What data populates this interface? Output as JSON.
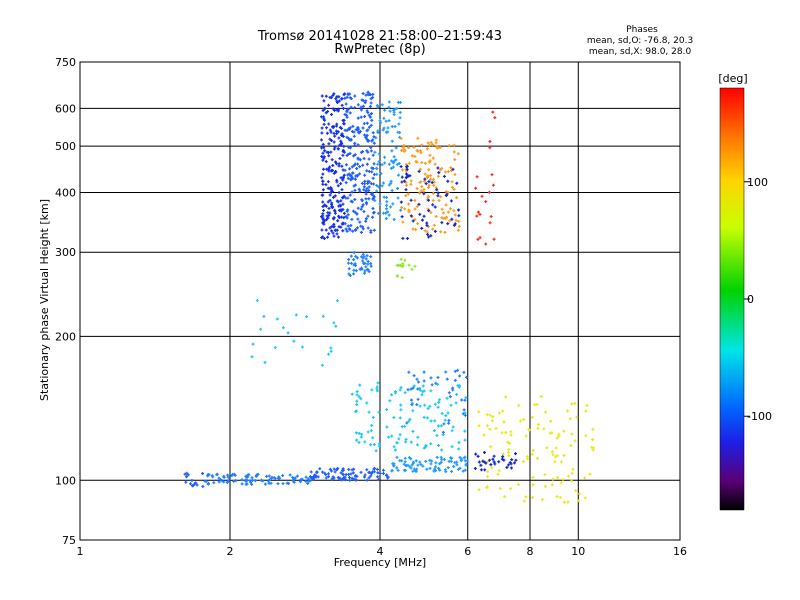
{
  "chart_data": {
    "type": "scatter",
    "title": "Tromsø 20141028 21:58:00–21:59:43",
    "subtitle": "RwPretec (8p)",
    "xlabel": "Frequency [MHz]",
    "ylabel": "Stationary phase Virtual Height [km]",
    "x_scale": "log2",
    "y_scale": "log",
    "xlim": [
      1,
      16
    ],
    "ylim": [
      75,
      750
    ],
    "x_ticks": [
      1,
      2,
      4,
      6,
      8,
      10,
      16
    ],
    "x_tick_labels": [
      "1",
      "2",
      "4",
      "6",
      "8",
      "10",
      "16"
    ],
    "y_ticks": [
      75,
      100,
      200,
      300,
      400,
      500,
      600,
      750
    ],
    "y_tick_labels": [
      "75",
      "100",
      "200",
      "300",
      "400",
      "500",
      "600",
      "750"
    ],
    "grid": true,
    "phases_info": {
      "heading": "Phases",
      "line1": "mean, sd,O:  -76.8, 20.3",
      "line2": "mean, sd,X:  98.0, 28.0"
    },
    "colorbar": {
      "label": "[deg]",
      "tick_labels": [
        "100",
        "0",
        "-100"
      ],
      "tick_values": [
        100,
        0,
        -100
      ],
      "range": [
        -180,
        180
      ]
    },
    "clusters": [
      {
        "x": [
          1.62,
          1.78
        ],
        "y": [
          96,
          104
        ],
        "n": 14,
        "c": "#1e5cff"
      },
      {
        "x": [
          1.78,
          2.9
        ],
        "y": [
          98,
          103
        ],
        "n": 90,
        "c": "#1f7dff"
      },
      {
        "x": [
          2.9,
          4.2
        ],
        "y": [
          100,
          106
        ],
        "n": 90,
        "c": "#1e5cff"
      },
      {
        "x": [
          4.2,
          6.0
        ],
        "y": [
          104,
          112
        ],
        "n": 80,
        "c": "#1f9aff"
      },
      {
        "x": [
          3.5,
          6.0
        ],
        "y": [
          115,
          160
        ],
        "n": 120,
        "c": "#19c9f0"
      },
      {
        "x": [
          4.5,
          6.0
        ],
        "y": [
          125,
          170
        ],
        "n": 40,
        "c": "#1f7dff"
      },
      {
        "x": [
          3.05,
          3.4
        ],
        "y": [
          320,
          650
        ],
        "n": 230,
        "c": "#1230e8"
      },
      {
        "x": [
          3.4,
          3.9
        ],
        "y": [
          330,
          650
        ],
        "n": 230,
        "c": "#1f5cff"
      },
      {
        "x": [
          3.9,
          4.4
        ],
        "y": [
          350,
          620
        ],
        "n": 90,
        "c": "#1f9aff"
      },
      {
        "x": [
          4.4,
          5.8
        ],
        "y": [
          330,
          520
        ],
        "n": 140,
        "c": "#ff9a1a"
      },
      {
        "x": [
          4.4,
          5.8
        ],
        "y": [
          320,
          460
        ],
        "n": 60,
        "c": "#1226c8"
      },
      {
        "x": [
          3.45,
          3.85
        ],
        "y": [
          268,
          300
        ],
        "n": 40,
        "c": "#1f7dff"
      },
      {
        "x": [
          4.3,
          4.7
        ],
        "y": [
          265,
          290
        ],
        "n": 14,
        "c": "#8ee82a"
      },
      {
        "x": [
          6.2,
          10.8
        ],
        "y": [
          90,
          150
        ],
        "n": 120,
        "c": "#e8e81a"
      },
      {
        "x": [
          6.2,
          7.5
        ],
        "y": [
          105,
          115
        ],
        "n": 30,
        "c": "#1226c8"
      },
      {
        "x": [
          6.2,
          6.8
        ],
        "y": [
          300,
          600
        ],
        "n": 20,
        "c": "#ff2a1a"
      },
      {
        "x": [
          2.2,
          3.3
        ],
        "y": [
          170,
          240
        ],
        "n": 22,
        "c": "#19c9f0"
      }
    ]
  }
}
